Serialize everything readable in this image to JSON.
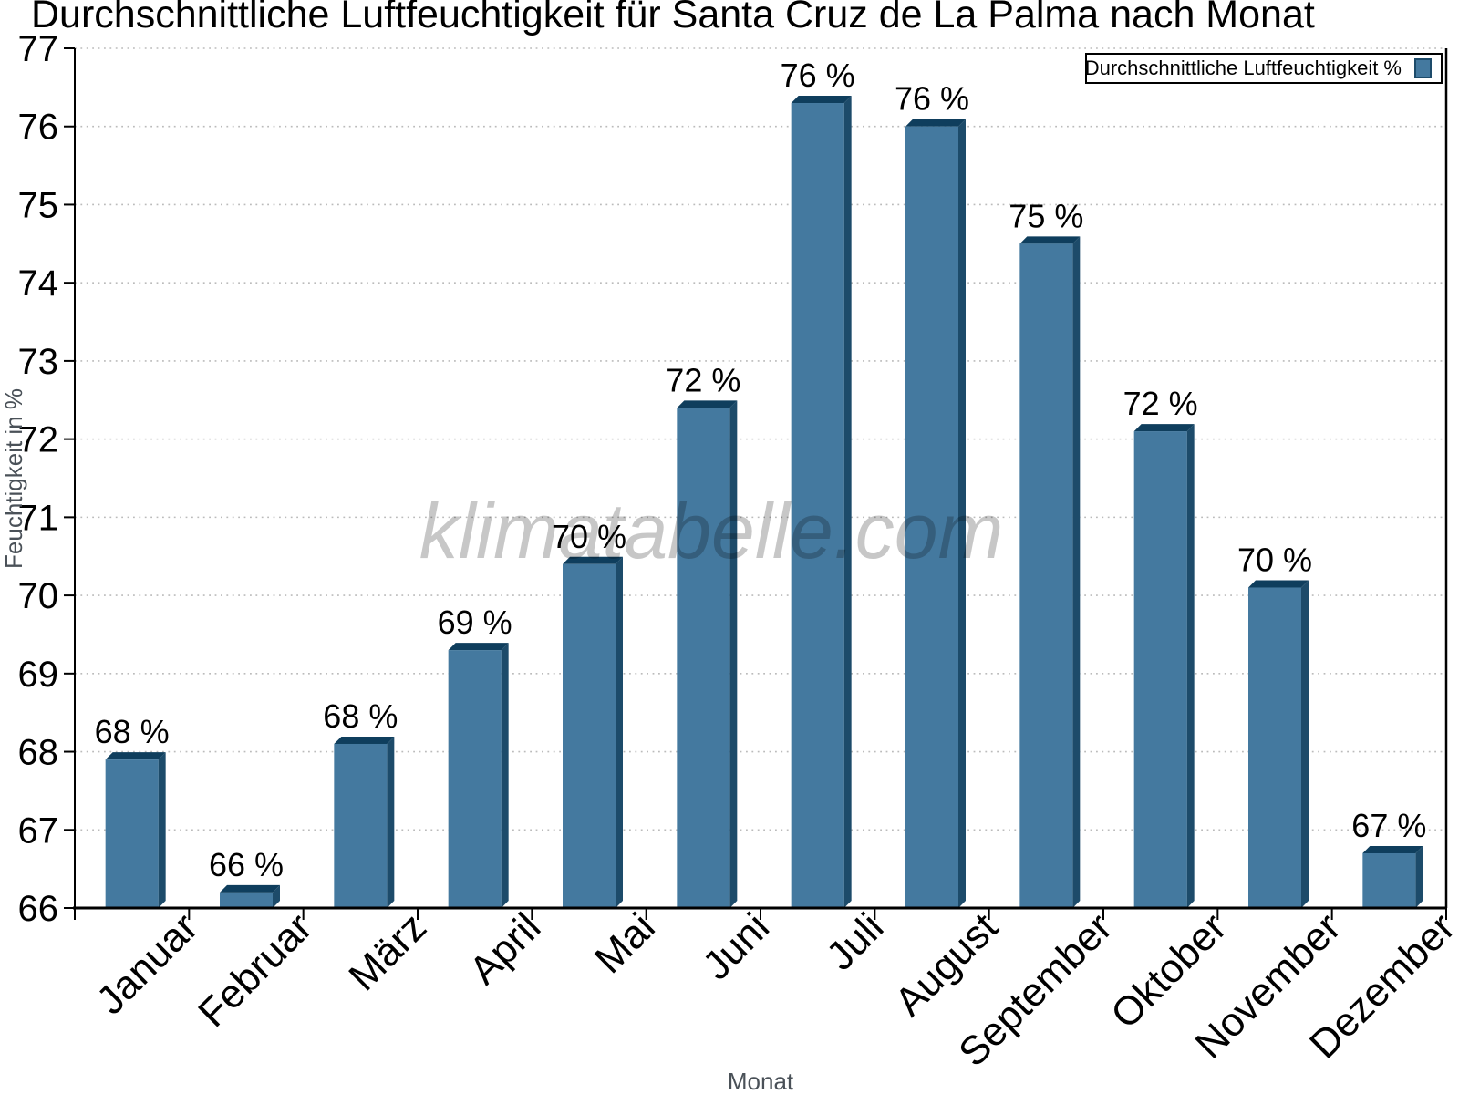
{
  "chart_data": {
    "type": "bar",
    "title": "Durchschnittliche Luftfeuchtigkeit für Santa Cruz de La Palma nach Monat",
    "xlabel": "Monat",
    "ylabel": "Feuchtigkeit in %",
    "categories": [
      "Januar",
      "Februar",
      "März",
      "April",
      "Mai",
      "Juni",
      "Juli",
      "August",
      "September",
      "Oktober",
      "November",
      "Dezember"
    ],
    "values": [
      67.9,
      66.2,
      68.1,
      69.3,
      70.4,
      72.4,
      76.3,
      76.0,
      74.5,
      72.1,
      70.1,
      66.7
    ],
    "bar_labels": [
      "68 %",
      "66 %",
      "68 %",
      "69 %",
      "70 %",
      "72 %",
      "76 %",
      "76 %",
      "75 %",
      "72 %",
      "70 %",
      "67 %"
    ],
    "ylim": [
      66,
      77
    ],
    "yticks": [
      66,
      67,
      68,
      69,
      70,
      71,
      72,
      73,
      74,
      75,
      76,
      77
    ],
    "grid": "horizontal-dotted",
    "legend": {
      "label": "Durchschnittliche Luftfeuchtigkeit %",
      "position": "top-right"
    },
    "watermark": "klimatabelle.com",
    "colors": {
      "bar_face": "#44799f",
      "bar_top": "#0f3e5d",
      "bar_side": "#1d4b6a",
      "grid": "#bbbbbb",
      "axis": "#000000",
      "axis_title": "#4a5158",
      "watermark": "#000000"
    }
  }
}
